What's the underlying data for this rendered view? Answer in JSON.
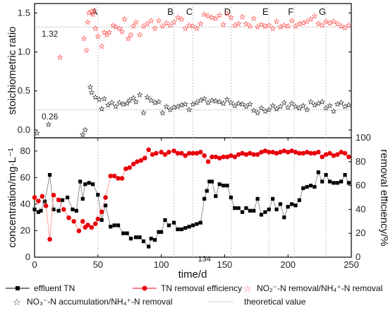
{
  "colors": {
    "effluent_tn": "#000000",
    "tn_removal_efficiency": "#e8000b",
    "no2_ratio": "#ff5555",
    "no3_ratio": "#333333",
    "theoretical": "#999999",
    "phase_line": "#bbbbbb"
  },
  "legend": {
    "effluent_tn": "effluent TN",
    "tn_efficiency": "TN removal efficiency",
    "no2_ratio": "NO₂⁻-N removal/NH₄⁺-N removal",
    "no3_ratio": "NO₃⁻-N accumulation/NH₄⁺-N removal",
    "theoretical": "theoretical value"
  },
  "chart_data": [
    {
      "panel": "top",
      "type": "scatter",
      "ylabel": "stoichiometric ratio",
      "xlim": [
        0,
        250
      ],
      "ylim": [
        -0.1,
        1.62
      ],
      "yticks": [
        "0.0",
        "0.5",
        "1.0",
        "1.5"
      ],
      "phases": [
        "A",
        "B",
        "C",
        "D",
        "E",
        "F",
        "G"
      ],
      "phase_boundaries": [
        50,
        110,
        125,
        155,
        185,
        205,
        230
      ],
      "theoretical_values": [
        {
          "label": "1.32",
          "value": 1.32
        },
        {
          "label": "0.26",
          "value": 0.26
        }
      ],
      "series": [
        {
          "name": "NO₂⁻-N removal/NH₄⁺-N removal",
          "marker": "star",
          "x": [
            20,
            39,
            41,
            42,
            43,
            45,
            46,
            47,
            48,
            50,
            53,
            55,
            57,
            59,
            62,
            64,
            67,
            69,
            71,
            74,
            76,
            78,
            80,
            83,
            86,
            89,
            92,
            95,
            98,
            101,
            104,
            107,
            110,
            113,
            116,
            119,
            122,
            125,
            128,
            131,
            134,
            137,
            140,
            143,
            146,
            149,
            152,
            155,
            158,
            161,
            164,
            167,
            170,
            173,
            176,
            179,
            182,
            185,
            188,
            191,
            194,
            197,
            200,
            203,
            206,
            209,
            212,
            215,
            218,
            221,
            224,
            227,
            230,
            233,
            236,
            239,
            242,
            245,
            248
          ],
          "y": [
            0.93,
            1.17,
            1.02,
            1.38,
            1.5,
            1.52,
            1.48,
            1.53,
            1.3,
            1.2,
            1.07,
            1.25,
            1.22,
            1.25,
            1.34,
            1.32,
            1.3,
            1.26,
            1.42,
            1.17,
            1.22,
            1.33,
            1.38,
            1.22,
            1.33,
            1.36,
            1.4,
            1.3,
            1.4,
            1.33,
            1.37,
            1.34,
            1.38,
            1.44,
            1.42,
            1.3,
            1.34,
            1.33,
            1.3,
            1.36,
            1.48,
            1.46,
            1.44,
            1.43,
            1.47,
            1.35,
            1.49,
            1.44,
            1.34,
            1.36,
            1.45,
            1.36,
            1.33,
            1.43,
            1.32,
            1.35,
            1.33,
            1.34,
            1.3,
            1.39,
            1.32,
            1.34,
            1.33,
            1.4,
            1.33,
            1.36,
            1.37,
            1.39,
            1.42,
            1.46,
            1.36,
            1.34,
            1.39,
            1.37,
            1.39,
            1.36,
            1.33,
            1.31,
            1.34
          ]
        },
        {
          "name": "NO₃⁻-N accumulation/NH₄⁺-N removal",
          "marker": "star",
          "x": [
            2,
            11,
            38,
            40,
            44,
            45,
            48,
            51,
            53,
            55,
            58,
            61,
            64,
            67,
            70,
            73,
            75,
            78,
            80,
            83,
            86,
            89,
            92,
            95,
            98,
            101,
            104,
            107,
            110,
            113,
            116,
            119,
            122,
            125,
            128,
            131,
            134,
            137,
            140,
            143,
            146,
            149,
            152,
            155,
            158,
            161,
            164,
            167,
            170,
            173,
            176,
            179,
            182,
            185,
            188,
            191,
            194,
            197,
            200,
            203,
            206,
            209,
            212,
            215,
            218,
            221,
            224,
            227,
            230,
            233,
            236,
            239,
            242,
            245,
            248
          ],
          "y": [
            -0.04,
            0.07,
            -0.06,
            0.0,
            0.55,
            0.48,
            0.42,
            0.39,
            0.27,
            0.4,
            0.32,
            0.35,
            0.3,
            0.35,
            0.33,
            0.34,
            0.38,
            0.41,
            0.36,
            0.45,
            0.22,
            0.42,
            0.38,
            0.35,
            0.36,
            0.22,
            0.3,
            0.26,
            0.29,
            0.3,
            0.32,
            0.33,
            0.26,
            0.33,
            0.35,
            0.38,
            0.4,
            0.35,
            0.38,
            0.37,
            0.36,
            0.34,
            0.39,
            0.35,
            0.31,
            0.34,
            0.33,
            0.3,
            0.33,
            0.25,
            0.22,
            0.28,
            0.24,
            0.26,
            0.31,
            0.27,
            0.3,
            0.35,
            0.29,
            0.34,
            0.3,
            0.28,
            0.31,
            0.26,
            0.36,
            0.32,
            0.34,
            0.36,
            0.28,
            0.31,
            0.24,
            0.33,
            0.35,
            0.3,
            0.32
          ]
        }
      ]
    },
    {
      "panel": "bottom",
      "type": "line",
      "xlabel": "time/d",
      "ylabel": "concentration/mg·L⁻¹",
      "ylabel_right": "removal efficiency/%",
      "xlim": [
        0,
        250
      ],
      "ylim": [
        0,
        90
      ],
      "ylim_right": [
        0,
        100
      ],
      "xticks": [
        "0",
        "50",
        "100",
        "150",
        "200",
        "250"
      ],
      "xtick_extra": "134",
      "yticks": [
        "0",
        "20",
        "40",
        "60",
        "80"
      ],
      "yticks_right": [
        "0",
        "20",
        "40",
        "60",
        "80",
        "100"
      ],
      "series": [
        {
          "name": "effluent TN",
          "axis": "left",
          "marker": "square",
          "x": [
            0,
            3,
            5,
            8,
            12,
            15,
            19,
            22,
            26,
            30,
            33,
            36,
            38,
            40,
            43,
            46,
            50,
            53,
            56,
            60,
            63,
            66,
            70,
            73,
            76,
            80,
            83,
            86,
            90,
            92,
            95,
            98,
            100,
            103,
            106,
            110,
            113,
            116,
            119,
            122,
            125,
            128,
            131,
            134,
            136,
            138,
            140,
            143,
            146,
            149,
            152,
            155,
            158,
            161,
            164,
            167,
            170,
            173,
            176,
            179,
            182,
            185,
            188,
            191,
            194,
            197,
            200,
            203,
            206,
            209,
            212,
            215,
            218,
            221,
            224,
            227,
            230,
            233,
            236,
            239,
            242,
            245,
            248
          ],
          "y": [
            36,
            34,
            35,
            42,
            62,
            36,
            35,
            43,
            45,
            36,
            35,
            57,
            44,
            55,
            56,
            55,
            47,
            28,
            39,
            23,
            24,
            24,
            18,
            18,
            14,
            15,
            15,
            12,
            8,
            14,
            13,
            19,
            19,
            28,
            24,
            26,
            21,
            21,
            22,
            23,
            24,
            25,
            26,
            44,
            50,
            57,
            57,
            46,
            55,
            54,
            54,
            45,
            37,
            37,
            34,
            37,
            35,
            35,
            44,
            32,
            34,
            36,
            44,
            36,
            40,
            30,
            38,
            40,
            39,
            43,
            52,
            53,
            54,
            53,
            64,
            57,
            62,
            57,
            56,
            56,
            57,
            62,
            56
          ]
        },
        {
          "name": "TN removal efficiency",
          "axis": "right",
          "marker": "circle",
          "x": [
            0,
            3,
            6,
            9,
            12,
            15,
            19,
            23,
            27,
            31,
            35,
            38,
            40,
            42,
            45,
            48,
            50,
            53,
            56,
            60,
            63,
            66,
            69,
            72,
            75,
            78,
            81,
            84,
            87,
            90,
            93,
            96,
            100,
            103,
            106,
            110,
            113,
            116,
            119,
            122,
            125,
            128,
            131,
            134,
            137,
            140,
            143,
            146,
            149,
            152,
            155,
            158,
            161,
            164,
            167,
            170,
            173,
            176,
            179,
            182,
            185,
            188,
            191,
            194,
            197,
            200,
            203,
            206,
            209,
            212,
            215,
            218,
            221,
            224,
            227,
            230,
            233,
            236,
            239,
            242,
            245,
            248
          ],
          "y": [
            50,
            47,
            51,
            43,
            15,
            52,
            48,
            40,
            33,
            30,
            22,
            30,
            25,
            27,
            25,
            28,
            32,
            38,
            50,
            68,
            68,
            66,
            66,
            74,
            75,
            78,
            80,
            81,
            83,
            90,
            86,
            87,
            88,
            86,
            88,
            89,
            87,
            87,
            85,
            87,
            87,
            87,
            88,
            85,
            80,
            84,
            84,
            83,
            84,
            84,
            85,
            84,
            86,
            87,
            86,
            87,
            86,
            86,
            88,
            89,
            88,
            88,
            87,
            88,
            89,
            88,
            89,
            88,
            87,
            87,
            88,
            87,
            87,
            88,
            84,
            86,
            87,
            85,
            86,
            88,
            87,
            84
          ]
        }
      ]
    }
  ]
}
